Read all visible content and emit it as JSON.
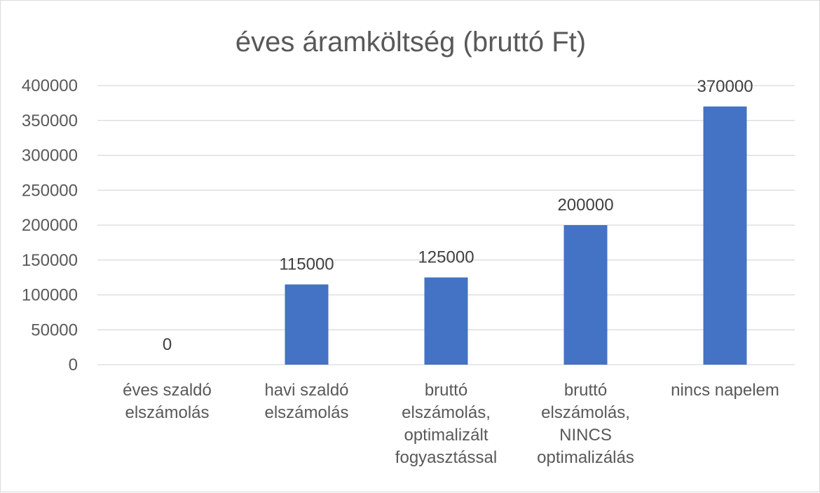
{
  "chart_data": {
    "type": "bar",
    "title": "éves áramköltség (bruttó Ft)",
    "categories": [
      [
        "éves szaldó",
        "elszámolás"
      ],
      [
        "havi szaldó",
        "elszámolás"
      ],
      [
        "bruttó",
        "elszámolás,",
        "optimalizált",
        "fogyasztással"
      ],
      [
        "bruttó",
        "elszámolás,",
        "NINCS",
        "optimalizálás"
      ],
      [
        "nincs napelem"
      ]
    ],
    "values": [
      0,
      115000,
      125000,
      200000,
      370000
    ],
    "data_labels": [
      "0",
      "115000",
      "125000",
      "200000",
      "370000"
    ],
    "ylim": [
      0,
      400000
    ],
    "yticks": [
      0,
      50000,
      100000,
      150000,
      200000,
      250000,
      300000,
      350000,
      400000
    ],
    "grid": true,
    "legend": "none",
    "bar_color": "#4472c4"
  }
}
